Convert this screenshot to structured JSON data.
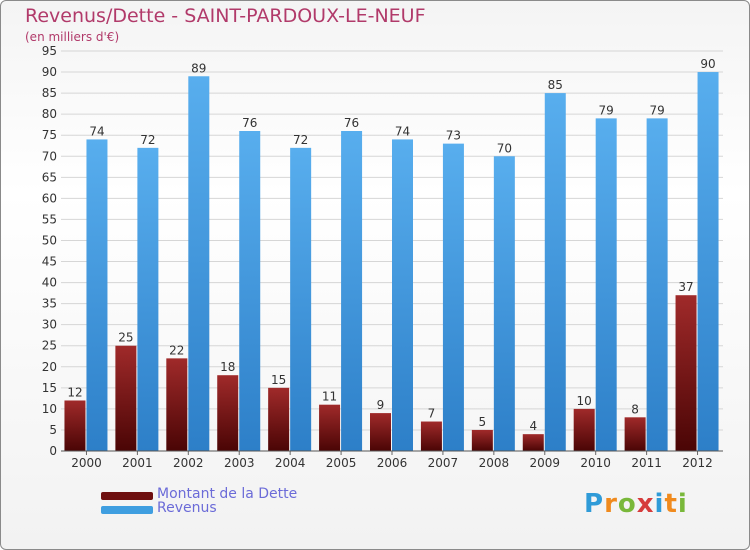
{
  "title": "Revenus/Dette - SAINT-PARDOUX-LE-NEUF",
  "subtitle": "(en milliers d'€)",
  "logo": {
    "text": "Proxiti",
    "letters": [
      "P",
      "r",
      "o",
      "x",
      "i",
      "t",
      "i"
    ],
    "colors": [
      "#2f9bd8",
      "#f08a1d",
      "#79b83a",
      "#d63c3c",
      "#2f9bd8",
      "#f08a1d",
      "#79b83a"
    ]
  },
  "legend": [
    {
      "label": "Montant de la Dette",
      "color": "#6e0f0f"
    },
    {
      "label": "Revenus",
      "color": "#3f9ee0"
    }
  ],
  "chart_data": {
    "type": "bar",
    "categories": [
      "2000",
      "2001",
      "2002",
      "2003",
      "2004",
      "2005",
      "2006",
      "2007",
      "2008",
      "2009",
      "2010",
      "2011",
      "2012"
    ],
    "series": [
      {
        "name": "Montant de la Dette",
        "values": [
          12,
          25,
          22,
          18,
          15,
          11,
          9,
          7,
          5,
          4,
          10,
          8,
          37
        ],
        "color": "#7a1515"
      },
      {
        "name": "Revenus",
        "values": [
          74,
          72,
          89,
          76,
          72,
          76,
          74,
          73,
          70,
          85,
          79,
          79,
          90
        ],
        "color": "#4aa3e6"
      }
    ],
    "ylim": [
      0,
      95
    ],
    "yticks": [
      0,
      5,
      10,
      15,
      20,
      25,
      30,
      35,
      40,
      45,
      50,
      55,
      60,
      65,
      70,
      75,
      80,
      85,
      90,
      95
    ],
    "grid": true,
    "legend_position": "bottom-left"
  }
}
